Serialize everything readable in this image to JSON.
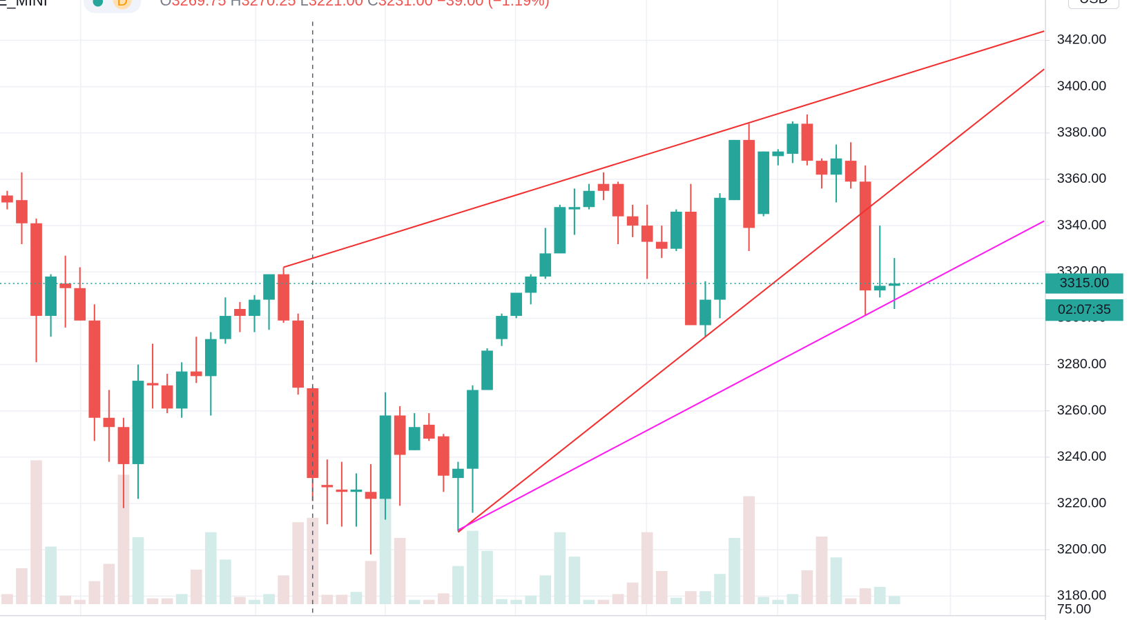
{
  "chart_data": {
    "type": "candlestick",
    "symbol": "E_MINI",
    "interval": "D",
    "header_ohlc": [
      {
        "key": "O",
        "value": "3269.75"
      },
      {
        "key": "H",
        "value": "3270.25"
      },
      {
        "key": "L",
        "value": "3221.00"
      },
      {
        "key": "C",
        "value": "3231.00"
      }
    ],
    "header_change": "−39.00 (−1.19%)",
    "currency": "USD",
    "last_price": {
      "value": 3315,
      "label": "3315.00"
    },
    "countdown": "02:07:35",
    "lower_pane_label": "75.00",
    "up_color": "#26a69a",
    "down_color": "#ef5350",
    "up_volume_color": "#d4ece9",
    "down_volume_color": "#f0dede",
    "ylim": [
      3169.7,
      3437.4
    ],
    "yticks": [
      {
        "value": 3180,
        "label": "3180.00"
      },
      {
        "value": 3200,
        "label": "3200.00"
      },
      {
        "value": 3220,
        "label": "3220.00"
      },
      {
        "value": 3240,
        "label": "3240.00"
      },
      {
        "value": 3260,
        "label": "3260.00"
      },
      {
        "value": 3280,
        "label": "3280.00"
      },
      {
        "value": 3300,
        "label": "3300.00"
      },
      {
        "value": 3320,
        "label": "3320.00"
      },
      {
        "value": 3340,
        "label": "3340.00"
      },
      {
        "value": 3360,
        "label": "3360.00"
      },
      {
        "value": 3380,
        "label": "3380.00"
      },
      {
        "value": 3400,
        "label": "3400.00"
      },
      {
        "value": 3420,
        "label": "3420.00"
      }
    ],
    "vlim": [
      0,
      600
    ],
    "open": [
      3353,
      3351,
      3341,
      3301,
      3315,
      3313,
      3299,
      3257,
      3253,
      3237,
      3272,
      3271,
      3261,
      3277,
      3275,
      3291,
      3304,
      3301,
      3308,
      3319,
      3299,
      3269.75,
      3228,
      3226,
      3225,
      3225,
      3222,
      3258,
      3243,
      3254,
      3249,
      3231,
      3235,
      3269,
      3291,
      3301,
      3311,
      3318,
      3328,
      3347,
      3348,
      3358,
      3358,
      3344,
      3340,
      3333,
      3330,
      3346,
      3297,
      3308,
      3351,
      3377,
      3345,
      3370,
      3371,
      3384,
      3368,
      3362,
      3368,
      3359,
      3312,
      3314
    ],
    "high": [
      3355,
      3363,
      3343,
      3319,
      3327,
      3322,
      3306,
      3269,
      3257,
      3280,
      3289,
      3276,
      3281,
      3292,
      3294,
      3309,
      3307,
      3310,
      3319,
      3322,
      3302,
      3270.25,
      3239,
      3238,
      3233,
      3237,
      3268,
      3262,
      3259,
      3259,
      3250,
      3238,
      3271,
      3287,
      3302,
      3311,
      3319,
      3339,
      3349,
      3356,
      3358,
      3363,
      3359,
      3349,
      3349,
      3340,
      3347,
      3358,
      3316,
      3354,
      3377,
      3384,
      3372,
      3373,
      3385,
      3388,
      3369,
      3375,
      3376,
      3366,
      3340,
      3326
    ],
    "low": [
      3347,
      3332,
      3281,
      3292,
      3296,
      3299,
      3247,
      3238,
      3218,
      3222,
      3261,
      3259,
      3257,
      3272,
      3258,
      3289,
      3294,
      3294,
      3295,
      3298,
      3267,
      3221,
      3211,
      3210,
      3210,
      3198,
      3213,
      3219,
      3243,
      3247,
      3225,
      3208,
      3216,
      3269,
      3288,
      3300,
      3306,
      3317,
      3328,
      3336,
      3347,
      3351,
      3332,
      3335,
      3317,
      3326,
      3329,
      3297,
      3292,
      3300,
      3351,
      3329,
      3344,
      3366,
      3367,
      3366,
      3356,
      3350,
      3356,
      3301,
      3309,
      3304
    ],
    "close": [
      3350,
      3341,
      3301,
      3318,
      3313,
      3299,
      3257,
      3253,
      3237,
      3273,
      3271,
      3261,
      3277,
      3275,
      3291,
      3301,
      3301,
      3308,
      3319,
      3299,
      3270,
      3231,
      3227,
      3225,
      3226,
      3222,
      3258,
      3241,
      3253,
      3248,
      3232,
      3235,
      3269,
      3286,
      3301,
      3311,
      3318,
      3328,
      3348,
      3348,
      3355,
      3355,
      3344,
      3340,
      3333,
      3330,
      3346,
      3297,
      3308,
      3352,
      3377,
      3339,
      3372,
      3372,
      3384,
      3368,
      3362,
      3369,
      3359,
      3312,
      3314,
      3315
    ],
    "volume": [
      14,
      50,
      200,
      80,
      12,
      6,
      32,
      56,
      180,
      93,
      8,
      8,
      14,
      48,
      100,
      62,
      10,
      6,
      14,
      40,
      114,
      120,
      13,
      13,
      17,
      60,
      150,
      92,
      6,
      6,
      15,
      53,
      102,
      74,
      7,
      6,
      12,
      40,
      100,
      66,
      6,
      6,
      14,
      30,
      100,
      46,
      9,
      18,
      18,
      42,
      92,
      150,
      10,
      6,
      14,
      47,
      94,
      65,
      8,
      22,
      24,
      11
    ],
    "trendlines": [
      {
        "color": "#f23030",
        "x": [
          19,
          71.3
        ],
        "y": [
          3322,
          3424
        ]
      },
      {
        "color": "#f23030",
        "x": [
          31,
          71.3
        ],
        "y": [
          3207.6,
          3407.6
        ]
      },
      {
        "color": "#ff1cf0",
        "x": [
          31,
          71.3
        ],
        "y": [
          3208.5,
          3342
        ]
      }
    ],
    "crosshair_index": 21
  }
}
